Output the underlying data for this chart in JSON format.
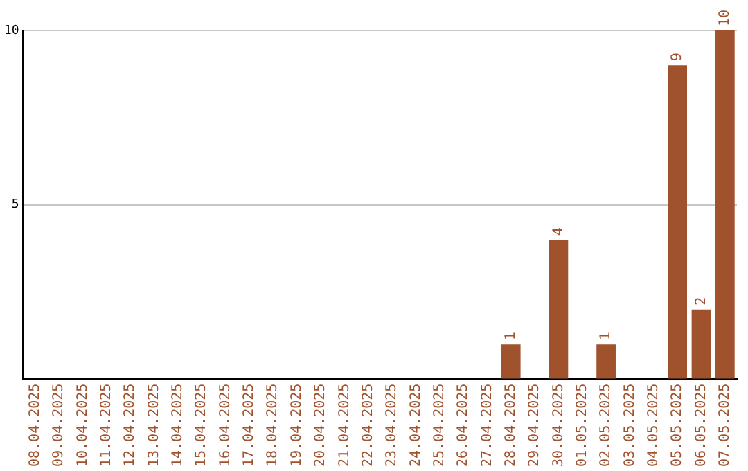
{
  "chart_data": {
    "type": "bar",
    "categories": [
      "08.04.2025",
      "09.04.2025",
      "10.04.2025",
      "11.04.2025",
      "12.04.2025",
      "13.04.2025",
      "14.04.2025",
      "15.04.2025",
      "16.04.2025",
      "17.04.2025",
      "18.04.2025",
      "19.04.2025",
      "20.04.2025",
      "21.04.2025",
      "22.04.2025",
      "23.04.2025",
      "24.04.2025",
      "25.04.2025",
      "26.04.2025",
      "27.04.2025",
      "28.04.2025",
      "29.04.2025",
      "30.04.2025",
      "01.05.2025",
      "02.05.2025",
      "03.05.2025",
      "04.05.2025",
      "05.05.2025",
      "06.05.2025",
      "07.05.2025"
    ],
    "values": [
      0,
      0,
      0,
      0,
      0,
      0,
      0,
      0,
      0,
      0,
      0,
      0,
      0,
      0,
      0,
      0,
      0,
      0,
      0,
      0,
      1,
      0,
      4,
      0,
      1,
      0,
      0,
      9,
      2,
      10
    ],
    "value_labels": [
      null,
      null,
      null,
      null,
      null,
      null,
      null,
      null,
      null,
      null,
      null,
      null,
      null,
      null,
      null,
      null,
      null,
      null,
      null,
      null,
      "1",
      null,
      "4",
      null,
      "1",
      null,
      null,
      "9",
      "2",
      "10"
    ],
    "color": "#a0522d",
    "ylim": [
      0,
      10
    ],
    "yticks": [
      {
        "value": 0,
        "label": null
      },
      5,
      10
    ],
    "grid": "y",
    "legend": false
  }
}
